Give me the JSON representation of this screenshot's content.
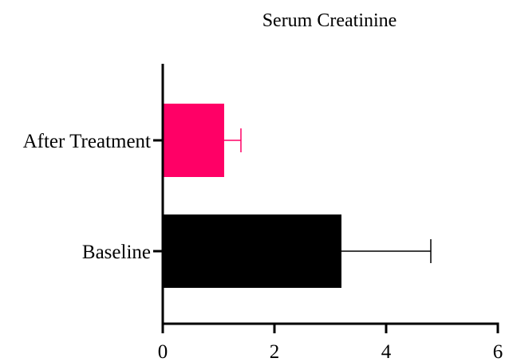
{
  "chart_data": {
    "type": "bar",
    "orientation": "horizontal",
    "title": "Serum Creatinine",
    "xlabel": "",
    "ylabel": "",
    "categories": [
      "After Treatment",
      "Baseline"
    ],
    "values": [
      1.1,
      3.2
    ],
    "errors": [
      0.3,
      1.6
    ],
    "bar_colors": [
      "#ff0066",
      "#000000"
    ],
    "xlim": [
      0,
      6
    ],
    "xticks": [
      "0",
      "2",
      "4",
      "6"
    ],
    "grid": false,
    "legend": "none"
  }
}
